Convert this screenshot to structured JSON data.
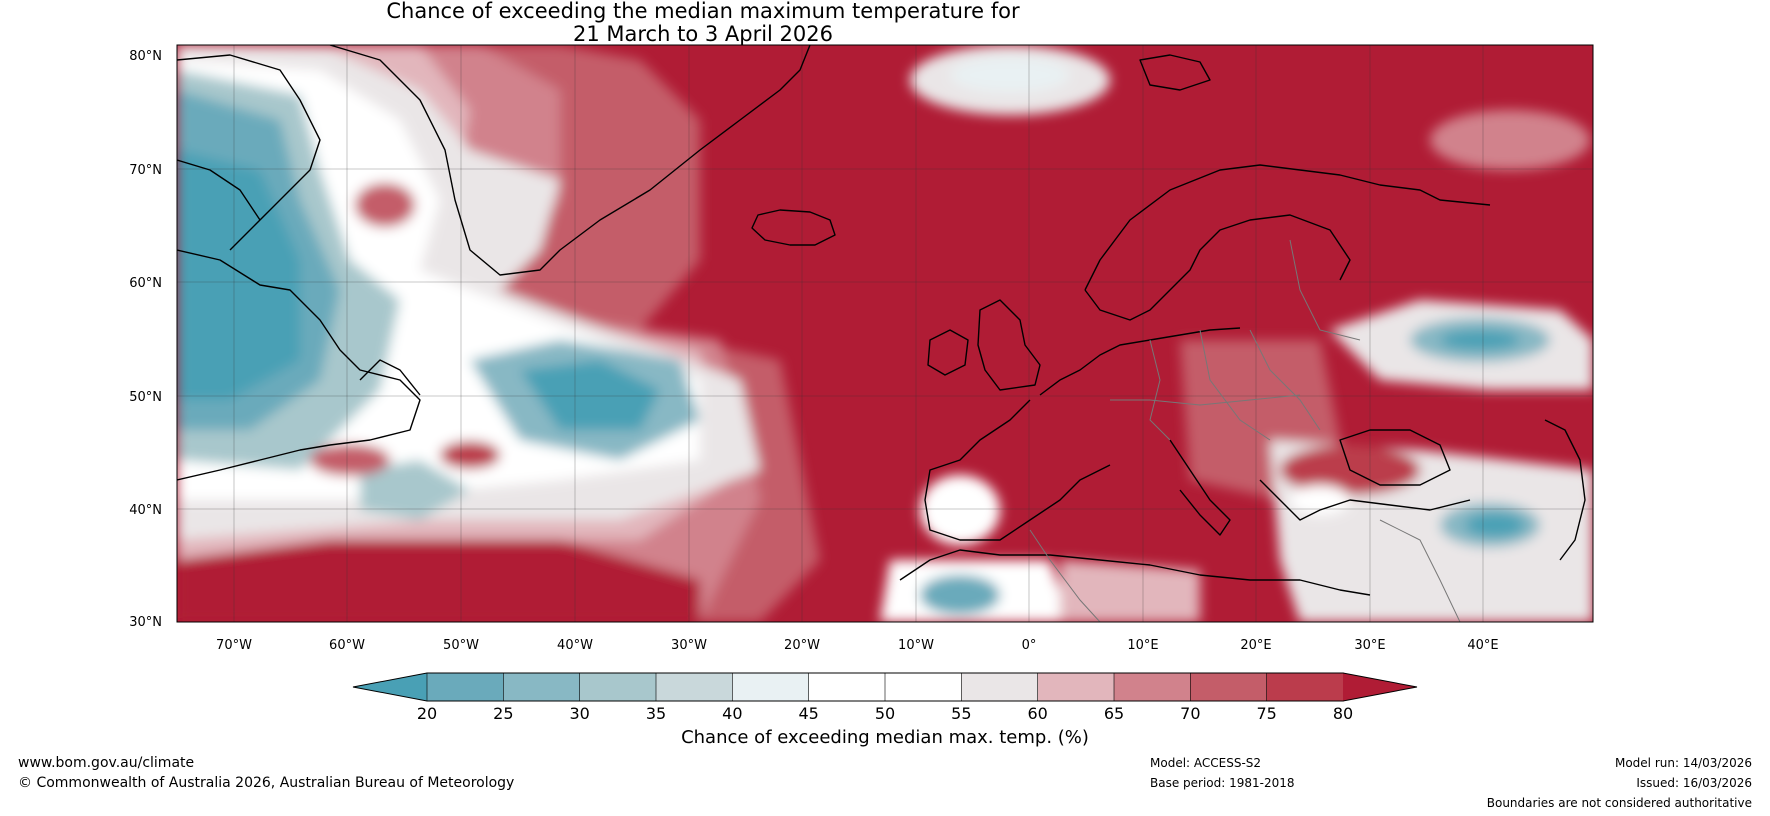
{
  "title": {
    "line1": "Chance of exceeding the median maximum temperature for",
    "line2": "21 March to 3 April 2026"
  },
  "map": {
    "lat_labels": [
      "80°N",
      "70°N",
      "60°N",
      "50°N",
      "40°N",
      "30°N"
    ],
    "lon_labels": [
      "70°W",
      "60°W",
      "50°W",
      "40°W",
      "30°W",
      "20°W",
      "10°W",
      "0°",
      "10°E",
      "20°E",
      "30°E",
      "40°E"
    ],
    "region": "North Atlantic and Europe"
  },
  "colorbar": {
    "title": "Chance of exceeding median max. temp. (%)",
    "ticks": [
      "20",
      "25",
      "30",
      "35",
      "40",
      "45",
      "50",
      "55",
      "60",
      "65",
      "70",
      "75",
      "80"
    ],
    "colors": [
      "#49a0b5",
      "#6aaabb",
      "#88b8c4",
      "#a8c7cc",
      "#c9d8db",
      "#e9f1f3",
      "#ffffff",
      "#ffffff",
      "#eae6e7",
      "#e2b6bc",
      "#d1828c",
      "#c45d69",
      "#bb3c4c",
      "#b01c35"
    ]
  },
  "footer": {
    "website": "www.bom.gov.au/climate",
    "copyright": "© Commonwealth of Australia 2026, Australian Bureau of Meteorology",
    "model": "Model: ACCESS-S2",
    "base_period": "Base period: 1981-2018",
    "model_run": "Model run: 14/03/2026",
    "issued": "Issued: 16/03/2026",
    "boundaries": "Boundaries are not considered authoritative"
  }
}
